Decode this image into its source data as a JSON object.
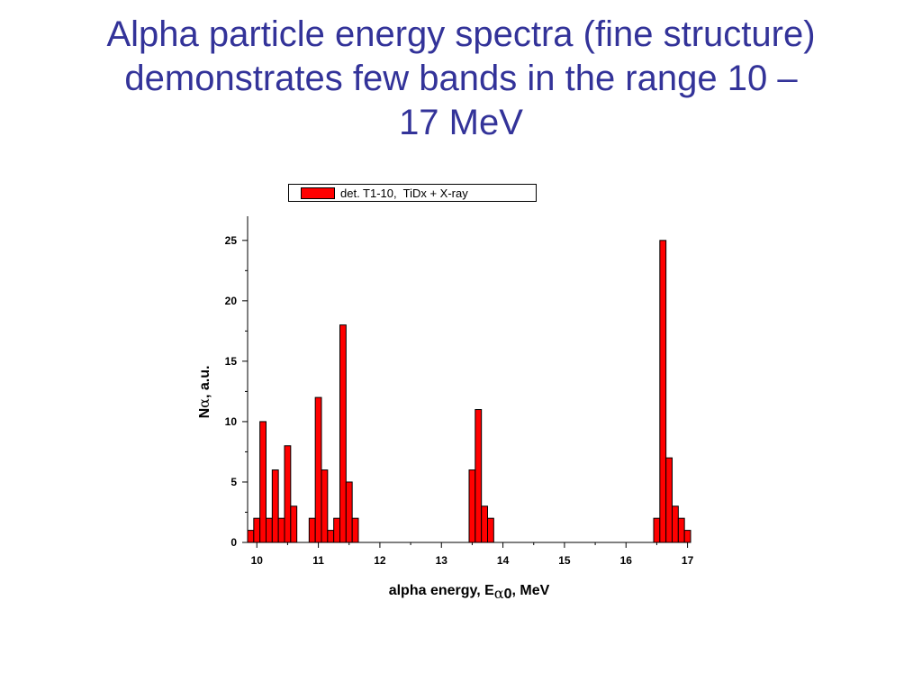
{
  "slide": {
    "title_lines": [
      "Alpha particle energy spectra (fine structure)",
      "demonstrates few bands in the range 10 –",
      "17 MeV"
    ]
  },
  "colors": {
    "title": "#333399",
    "bar_fill": "#ff0000",
    "bar_stroke": "#000000"
  },
  "chart_data": {
    "type": "bar",
    "series": [
      {
        "name": "det. T1-10,  TiDx + X-ray",
        "bin_width": 0.1,
        "x": [
          9.9,
          10.0,
          10.1,
          10.2,
          10.3,
          10.4,
          10.5,
          10.6,
          10.9,
          11.0,
          11.1,
          11.2,
          11.3,
          11.4,
          11.5,
          11.6,
          13.5,
          13.6,
          13.7,
          13.8,
          16.5,
          16.6,
          16.7,
          16.8,
          16.9,
          17.0
        ],
        "values": [
          1,
          2,
          10,
          2,
          6,
          2,
          8,
          3,
          2,
          12,
          6,
          1,
          2,
          18,
          5,
          2,
          6,
          11,
          3,
          2,
          2,
          25,
          7,
          3,
          2,
          1
        ]
      }
    ],
    "xlim": [
      9.85,
      17.05
    ],
    "ylim": [
      0,
      27
    ],
    "xticks": [
      10,
      11,
      12,
      13,
      14,
      15,
      16,
      17
    ],
    "xtick_labels": [
      "10",
      "11",
      "12",
      "13",
      "14",
      "15",
      "16",
      "17"
    ],
    "yticks": [
      0,
      5,
      10,
      15,
      20,
      25
    ],
    "ytick_labels": [
      "0",
      "5",
      "10",
      "15",
      "20",
      "25"
    ],
    "xlabel": {
      "prefix": "alpha energy, E",
      "subscript_greek": "α",
      "subscript": "0",
      "suffix": ", MeV"
    },
    "ylabel": {
      "prefix": "N",
      "greek": "α",
      "suffix": ", a.u."
    },
    "grid": false,
    "legend_position": "top"
  }
}
